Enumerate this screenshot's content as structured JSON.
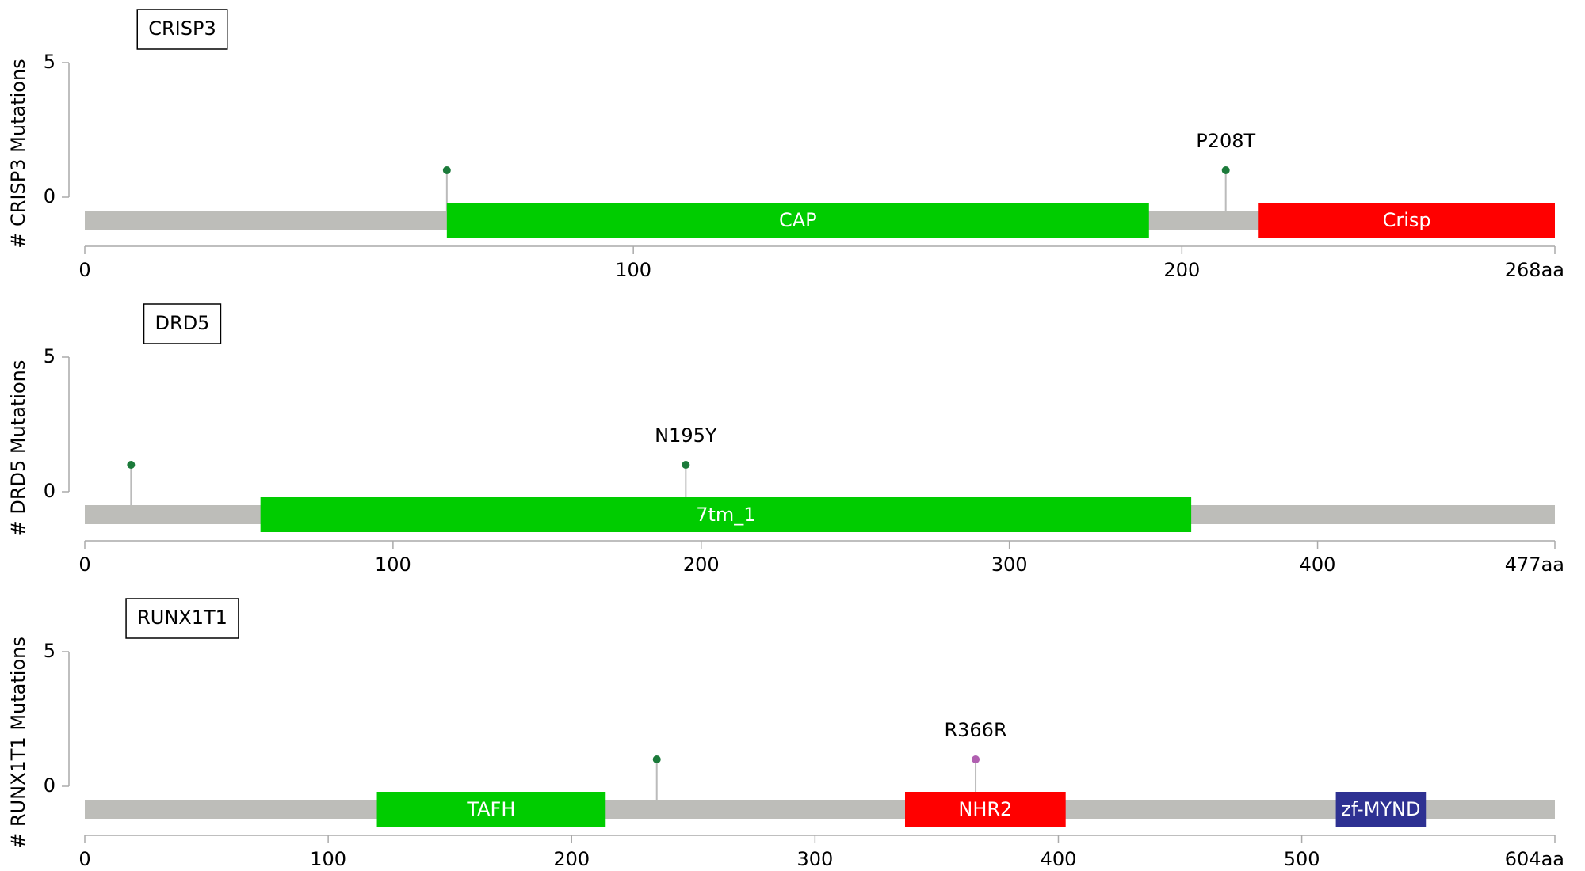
{
  "chart_data": [
    {
      "type": "lollipop",
      "title": "CRISP3",
      "ylabel": "# CRISP3 Mutations",
      "ylim": [
        0,
        5
      ],
      "yticks": [
        0,
        5
      ],
      "xlim": [
        0,
        268
      ],
      "xticks": [
        0,
        100,
        200,
        {
          "value": 268,
          "label": "268aa"
        }
      ],
      "backbone_color": "#bdbdb9",
      "mutations": {
        "x": [
          66,
          208
        ],
        "values": [
          1,
          1
        ],
        "labels": [
          null,
          "P208T"
        ],
        "colors": [
          "#1b7a3a",
          "#1b7a3a"
        ]
      },
      "domains": [
        {
          "name": "CAP",
          "start": 66,
          "end": 194,
          "color": "#00cc00"
        },
        {
          "name": "Crisp",
          "start": 214,
          "end": 268,
          "color": "#ff0000"
        }
      ]
    },
    {
      "type": "lollipop",
      "title": "DRD5",
      "ylabel": "# DRD5 Mutations",
      "ylim": [
        0,
        5
      ],
      "yticks": [
        0,
        5
      ],
      "xlim": [
        0,
        477
      ],
      "xticks": [
        0,
        100,
        200,
        300,
        400,
        {
          "value": 477,
          "label": "477aa"
        }
      ],
      "backbone_color": "#bdbdb9",
      "mutations": {
        "x": [
          15,
          195
        ],
        "values": [
          1,
          1
        ],
        "labels": [
          null,
          "N195Y"
        ],
        "colors": [
          "#1b7a3a",
          "#1b7a3a"
        ]
      },
      "domains": [
        {
          "name": "7tm_1",
          "start": 57,
          "end": 359,
          "color": "#00cc00"
        }
      ]
    },
    {
      "type": "lollipop",
      "title": "RUNX1T1",
      "ylabel": "# RUNX1T1 Mutations",
      "ylim": [
        0,
        5
      ],
      "yticks": [
        0,
        5
      ],
      "xlim": [
        0,
        604
      ],
      "xticks": [
        0,
        100,
        200,
        300,
        400,
        500,
        {
          "value": 604,
          "label": "604aa"
        }
      ],
      "backbone_color": "#bdbdb9",
      "mutations": {
        "x": [
          235,
          366
        ],
        "values": [
          1,
          1
        ],
        "labels": [
          null,
          "R366R"
        ],
        "colors": [
          "#1b7a3a",
          "#b05fb0"
        ]
      },
      "domains": [
        {
          "name": "TAFH",
          "start": 120,
          "end": 214,
          "color": "#00cc00"
        },
        {
          "name": "NHR2",
          "start": 337,
          "end": 403,
          "color": "#ff0000"
        },
        {
          "name": "zf-MYND",
          "start": 514,
          "end": 551,
          "color": "#2e3192"
        }
      ]
    }
  ]
}
